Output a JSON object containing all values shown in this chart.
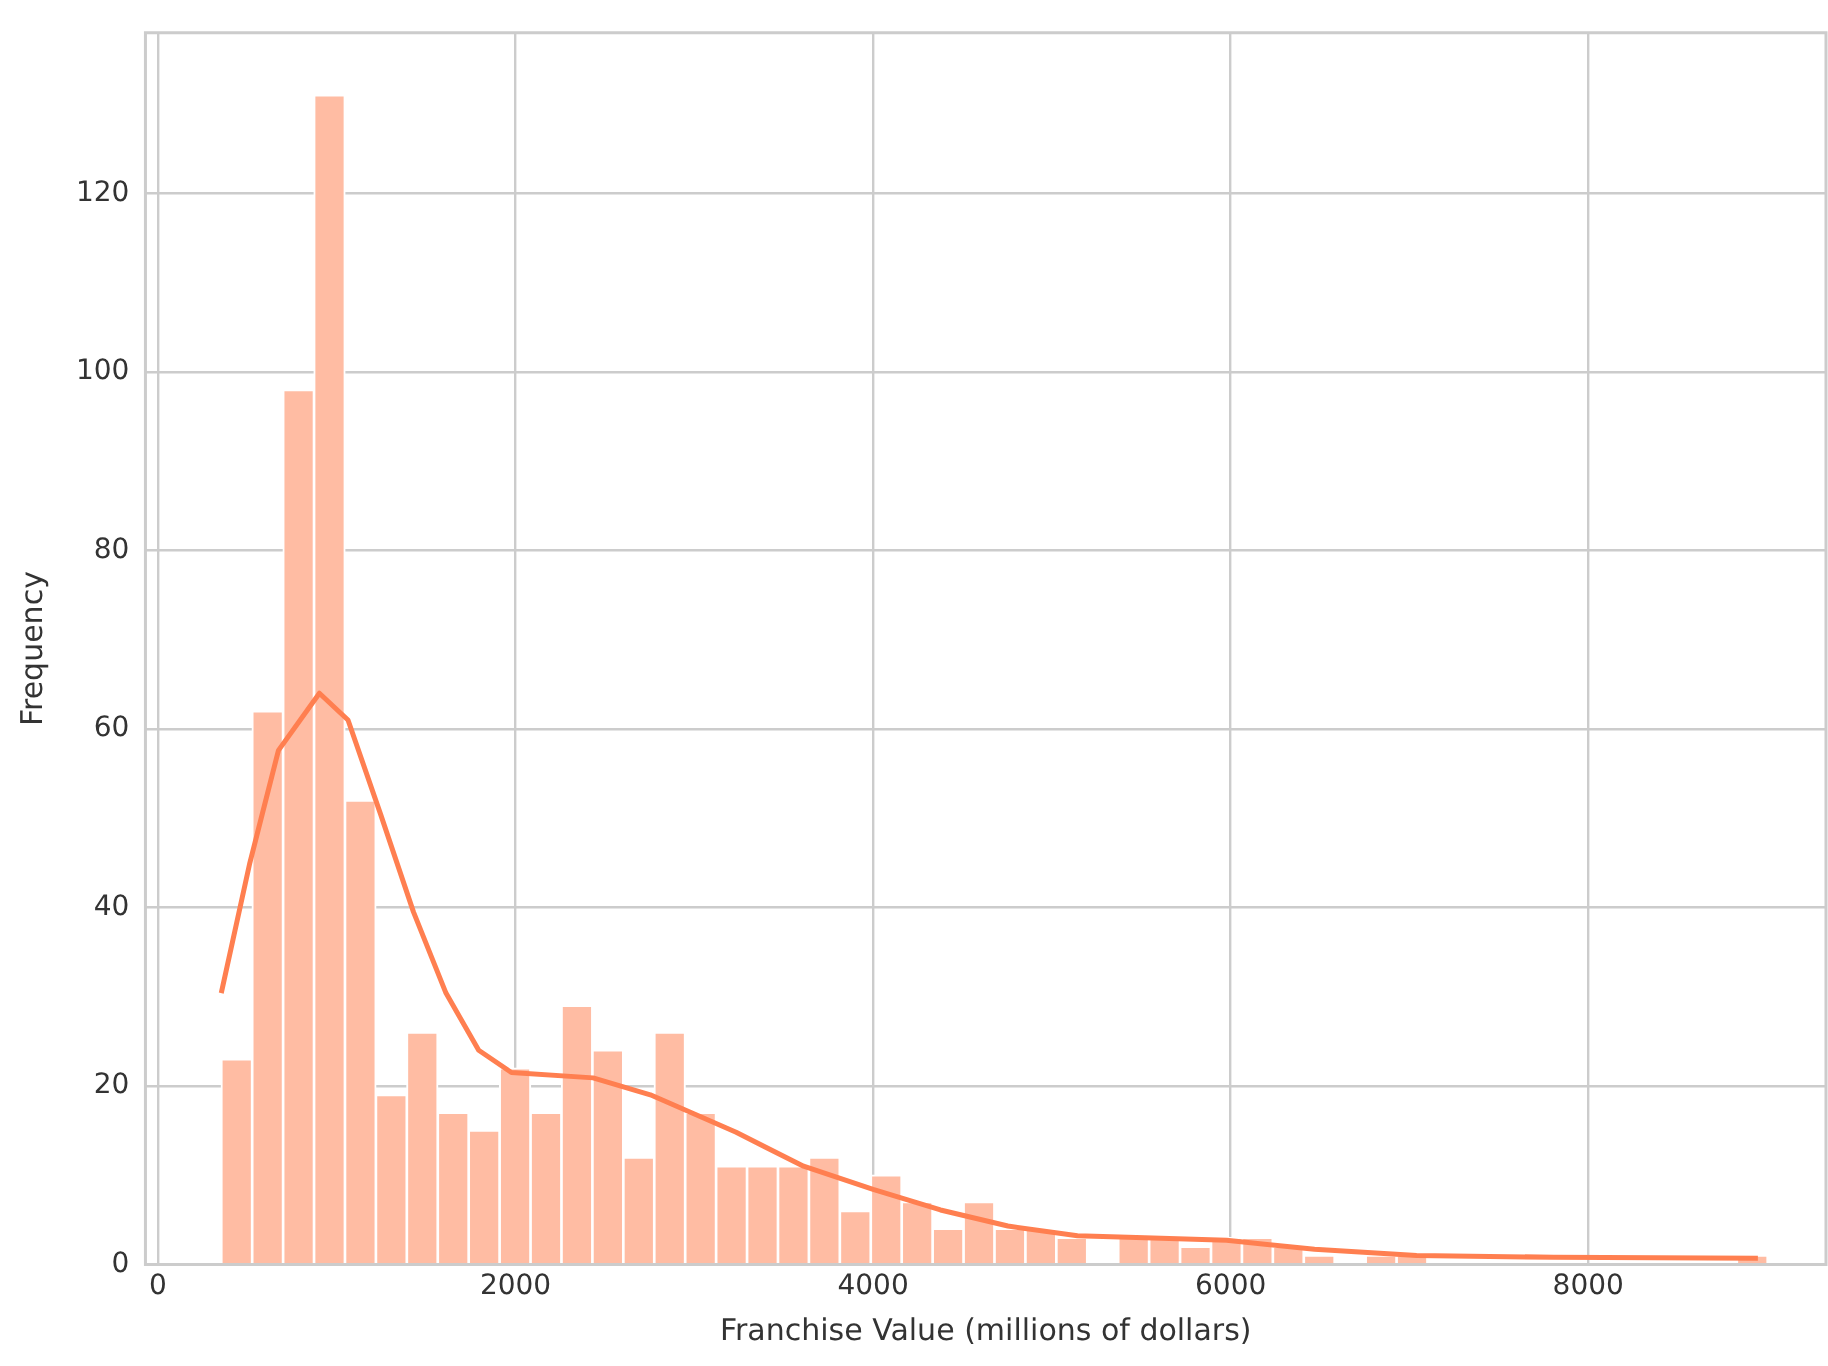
{
  "chart_data": {
    "type": "histogram",
    "xlabel": "Franchise Value (millions of dollars)",
    "ylabel": "Frequency",
    "bins": [
      354,
      527,
      700,
      873,
      1046,
      1219,
      1392,
      1565,
      1738,
      1911,
      2084,
      2257,
      2430,
      2603,
      2776,
      2949,
      3122,
      3295,
      3468,
      3641,
      3814,
      3987,
      4160,
      4333,
      4506,
      4679,
      4852,
      5025,
      5198,
      5371,
      5544,
      5717,
      5890,
      6063,
      6236,
      6409,
      6582,
      6755,
      6928,
      7101,
      7274,
      7447,
      7620,
      7793,
      7966,
      8139,
      8312,
      8485,
      8658,
      8831,
      9004
    ],
    "series": [
      {
        "color": "#ffbca3",
        "values": [
          23,
          62,
          98,
          131,
          52,
          19,
          26,
          17,
          15,
          22,
          17,
          29,
          24,
          12,
          26,
          17,
          11,
          11,
          11,
          12,
          6,
          10,
          7,
          4,
          7,
          4,
          4,
          3,
          0,
          3,
          3,
          2,
          3,
          3,
          2,
          1,
          0,
          1,
          1,
          0,
          0,
          0,
          0,
          0,
          0,
          0,
          0,
          0,
          0,
          1
        ]
      },
      {
        "type": "line",
        "color": "#ff7f50",
        "x": [
          354,
          514,
          674,
          903,
          1063,
          1246,
          1429,
          1611,
          1794,
          1977,
          2434,
          2754,
          3234,
          3611,
          4000,
          4377,
          4754,
          5143,
          5520,
          5977,
          6469,
          7040,
          7806,
          8949
        ],
        "values": [
          30.4,
          45,
          57.6,
          64,
          61,
          50.4,
          39.5,
          30.4,
          24,
          21.5,
          20.9,
          19,
          14.8,
          11,
          8.4,
          6.1,
          4.3,
          3.2,
          3.0,
          2.7,
          1.7,
          1.0,
          0.8,
          0.7
        ]
      }
    ],
    "xlim": [
      -70,
      9330
    ],
    "xticks": [
      0,
      2000,
      4000,
      6000,
      8000
    ],
    "ylim": [
      0,
      138
    ],
    "yticks": [
      0,
      20,
      40,
      60,
      80,
      100,
      120
    ],
    "grid": true,
    "legend": false
  }
}
